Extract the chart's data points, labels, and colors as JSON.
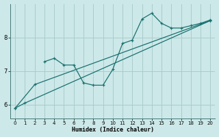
{
  "xlabel": "Humidex (Indice chaleur)",
  "bg_color": "#cce8e8",
  "grid_color": "#aacccc",
  "line_color": "#1a7070",
  "xlim": [
    -0.5,
    20.5
  ],
  "ylim": [
    5.6,
    9.0
  ],
  "xticks": [
    0,
    1,
    2,
    3,
    4,
    5,
    6,
    7,
    8,
    9,
    10,
    11,
    12,
    13,
    14,
    15,
    16,
    17,
    18,
    19,
    20
  ],
  "yticks": [
    6,
    7,
    8
  ],
  "line1_x": [
    0,
    1,
    20
  ],
  "line1_y": [
    5.9,
    6.05,
    8.5
  ],
  "line2_x": [
    0,
    2,
    20
  ],
  "line2_y": [
    5.9,
    6.6,
    8.5
  ],
  "line3_x": [
    3,
    4,
    5,
    6,
    7,
    8,
    9,
    10,
    11,
    12,
    13,
    14,
    15,
    16,
    17,
    18,
    19,
    20
  ],
  "line3_y": [
    7.28,
    7.38,
    7.18,
    7.18,
    6.65,
    6.58,
    6.58,
    7.05,
    7.82,
    7.92,
    8.55,
    8.72,
    8.42,
    8.28,
    8.28,
    8.35,
    8.42,
    8.52
  ]
}
